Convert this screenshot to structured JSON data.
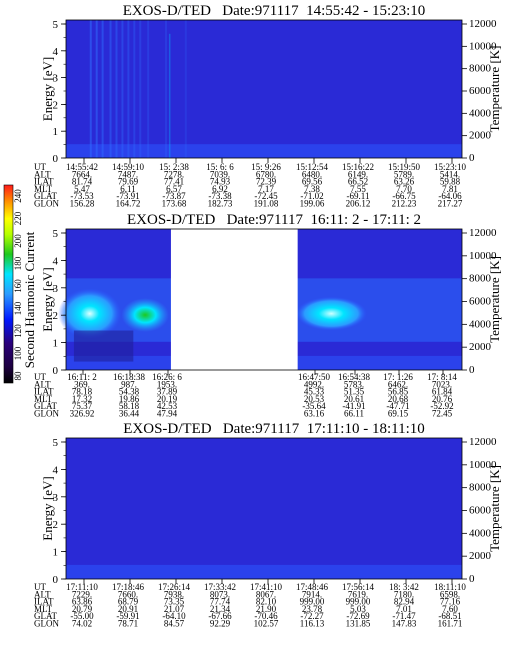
{
  "colors": {
    "background": "#ffffff",
    "plot_base": "#2a2ad6",
    "plot_band": "#2b55ff",
    "cyan": "#00e5ff",
    "green": "#1ec81e",
    "yellow": "#ffff00",
    "orange": "#ff8c00",
    "red": "#ff1a1a",
    "dark_purple": "#1d0040",
    "black": "#000000"
  },
  "colorbar": {
    "label": "Second Harmonic Current",
    "ticks": [
      "240",
      "220",
      "200",
      "180",
      "160",
      "140",
      "120",
      "100",
      "80"
    ]
  },
  "chart_data": [
    {
      "type": "heatmap",
      "title": "EXOS-D/TED   Date:971117  14:55:42 - 15:23:10",
      "ylabel": "Energy [eV]",
      "ylabel_right": "Temperature [K]",
      "yticks": [
        "0",
        "1",
        "2",
        "3",
        "4",
        "5"
      ],
      "yticks_right": [
        "0",
        "2000",
        "4000",
        "6000",
        "8000",
        "10000",
        "12000"
      ],
      "ylim": [
        0,
        5
      ],
      "ylim_right": [
        0,
        12000
      ],
      "row_labels": [
        "UT",
        "ALT",
        "ILAT",
        "MLT",
        "GLAT",
        "GLON"
      ],
      "columns": [
        [
          "14:55:42",
          "7664.",
          "81.74",
          "5.47",
          "-73.53",
          "156.28"
        ],
        [
          "14:59:10",
          "7487.",
          "79.69",
          "6.11",
          "-73.91",
          "164.72"
        ],
        [
          "15: 2:38",
          "7278.",
          "77.41",
          "6.57",
          "-73.87",
          "173.68"
        ],
        [
          "15: 6: 6",
          "7039.",
          "74.93",
          "6.92",
          "-73.38",
          "182.73"
        ],
        [
          "15: 9:26",
          "6780.",
          "72.39",
          "7.17",
          "-72.45",
          "191.08"
        ],
        [
          "15:12:54",
          "6480.",
          "69.56",
          "7.38",
          "-71.02",
          "199.06"
        ],
        [
          "15:16:22",
          "6149.",
          "66.52",
          "7.55",
          "-69.11",
          "206.12"
        ],
        [
          "15:19:50",
          "5789.",
          "63.26",
          "7.70",
          "-66.75",
          "212.23"
        ],
        [
          "15:23:10",
          "5414.",
          "59.88",
          "7.81",
          "-64.06",
          "217.27"
        ]
      ],
      "data_gaps": []
    },
    {
      "type": "heatmap",
      "title": "EXOS-D/TED   Date:971117  16:11: 2 - 17:11: 2",
      "ylabel": "Energy [eV]",
      "ylabel_right": "Temperature [K]",
      "yticks": [
        "0",
        "1",
        "2",
        "3",
        "4",
        "5"
      ],
      "yticks_right": [
        "0",
        "2000",
        "4000",
        "6000",
        "8000",
        "10000",
        "12000"
      ],
      "ylim": [
        0,
        5
      ],
      "ylim_right": [
        0,
        12000
      ],
      "row_labels": [
        "UT",
        "ALT",
        "ILAT",
        "MLT",
        "GLAT",
        "GLON"
      ],
      "columns": [
        [
          "16:11: 2",
          "369.",
          "78.18",
          "17.32",
          "75.37",
          "326.92"
        ],
        [
          "16:18:38",
          "987.",
          "54.38",
          "19.86",
          "58.18",
          "36.44"
        ],
        [
          "16:26: 6",
          "1953.",
          "37.89",
          "20.19",
          "42.53",
          "47.94"
        ],
        [
          "16:47:50",
          "4992.",
          "45.33",
          "20.53",
          "-35.64",
          "63.16"
        ],
        [
          "16:54:38",
          "5783.",
          "51.35",
          "20.61",
          "-41.91",
          "66.11"
        ],
        [
          "17: 1:26",
          "6462.",
          "56.85",
          "20.68",
          "-47.71",
          "69.15"
        ],
        [
          "17: 8:14",
          "7023.",
          "61.84",
          "20.76",
          "-52.92",
          "72.45"
        ]
      ],
      "data_gaps": [
        [
          0.265,
          0.585
        ]
      ]
    },
    {
      "type": "heatmap",
      "title": "EXOS-D/TED   Date:971117  17:11:10 - 18:11:10",
      "ylabel": "Energy [eV]",
      "ylabel_right": "Temperature [K]",
      "yticks": [
        "0",
        "1",
        "2",
        "3",
        "4",
        "5"
      ],
      "yticks_right": [
        "0",
        "2000",
        "4000",
        "6000",
        "8000",
        "10000",
        "12000"
      ],
      "ylim": [
        0,
        5
      ],
      "ylim_right": [
        0,
        12000
      ],
      "row_labels": [
        "UT",
        "ALT",
        "ILAT",
        "MLT",
        "GLAT",
        "GLON"
      ],
      "columns": [
        [
          "17:11:10",
          "7229.",
          "63.86",
          "20.79",
          "-55.00",
          "74.02"
        ],
        [
          "17:18:46",
          "7660.",
          "68.79",
          "20.91",
          "-59.91",
          "78.71"
        ],
        [
          "17:26:14",
          "7938.",
          "73.35",
          "21.07",
          "-64.10",
          "84.57"
        ],
        [
          "17:33:42",
          "8073.",
          "77.74",
          "21.34",
          "-67.66",
          "92.29"
        ],
        [
          "17:41:10",
          "8067.",
          "82.10",
          "21.90",
          "-70.46",
          "102.57"
        ],
        [
          "17:48:46",
          "7914.",
          "999.00",
          "23.78",
          "-72.27",
          "116.13"
        ],
        [
          "17:56:14",
          "7619.",
          "999.00",
          "5.03",
          "-72.69",
          "131.85"
        ],
        [
          "18: 3:42",
          "7180.",
          "82.94",
          "7.01",
          "-71.47",
          "147.83"
        ],
        [
          "18:11:10",
          "6598.",
          "77.16",
          "7.60",
          "-68.51",
          "161.71"
        ]
      ],
      "data_gaps": []
    }
  ]
}
